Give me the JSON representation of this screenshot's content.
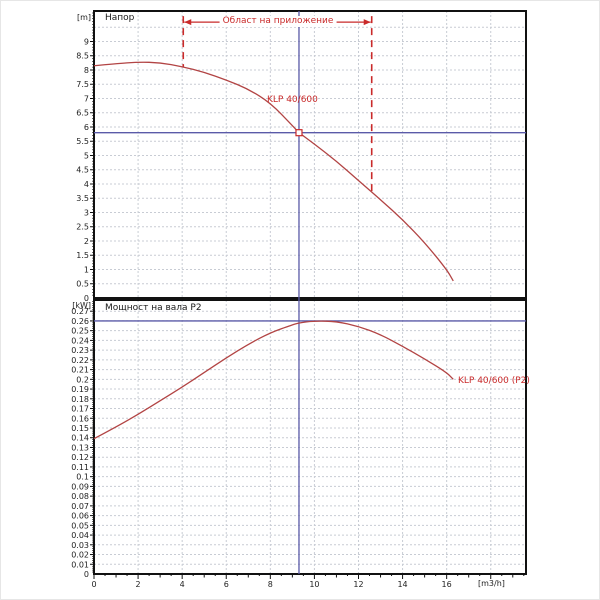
{
  "colors": {
    "curve_red": "#b24444",
    "annotation_red": "#c92a2a",
    "ref_blue": "#5a5aa8",
    "grid": "#c8ccd4",
    "frame": "#111111",
    "text": "#222222"
  },
  "x_axis": {
    "label": "[m3/h]",
    "min": 0,
    "max": 19.6,
    "tick_step": 2,
    "labeled_ticks": [
      0,
      2,
      4,
      6,
      8,
      10,
      12,
      14,
      16
    ]
  },
  "ref_flow": 9.3,
  "chart_data": [
    {
      "type": "line",
      "title": "Напор",
      "unit_label": "[m]",
      "xlabel": "[m3/h]",
      "ylim": [
        0,
        10.07
      ],
      "ytick_step": 0.5,
      "ytick_max": 9,
      "ref_line_y": 5.8,
      "duty_point": {
        "x": 9.3,
        "y": 5.8
      },
      "annotation": {
        "label": "Област на приложение",
        "x_from": 4.05,
        "x_to": 12.6,
        "line_y": 9.68,
        "drop_left_to": 8.1,
        "drop_right_to": 3.62
      },
      "series": [
        {
          "name": "KLP 40/600",
          "x": [
            0,
            1,
            2,
            3,
            4,
            5,
            6,
            7,
            8,
            9,
            9.3,
            10,
            11,
            12,
            13,
            14,
            15,
            16,
            16.3
          ],
          "y": [
            8.15,
            8.22,
            8.28,
            8.26,
            8.12,
            7.92,
            7.65,
            7.33,
            6.85,
            6.05,
            5.8,
            5.4,
            4.8,
            4.12,
            3.45,
            2.75,
            1.95,
            1.0,
            0.6
          ]
        }
      ]
    },
    {
      "type": "line",
      "title": "Мощност на вала P2",
      "unit_label": "[kW]",
      "xlabel": "[m3/h]",
      "ylim": [
        0,
        0.2815
      ],
      "ytick_step": 0.01,
      "ytick_max": 0.27,
      "ref_line_y": 0.26,
      "series": [
        {
          "name": "KLP 40/600 (P2)",
          "x": [
            0,
            1,
            2,
            3,
            4,
            5,
            6,
            7,
            8,
            9,
            9.3,
            10,
            11,
            12,
            13,
            14,
            15,
            16,
            16.3
          ],
          "y": [
            0.139,
            0.151,
            0.164,
            0.178,
            0.192,
            0.207,
            0.222,
            0.236,
            0.248,
            0.256,
            0.258,
            0.26,
            0.2595,
            0.2545,
            0.246,
            0.234,
            0.221,
            0.207,
            0.2
          ]
        }
      ]
    }
  ]
}
